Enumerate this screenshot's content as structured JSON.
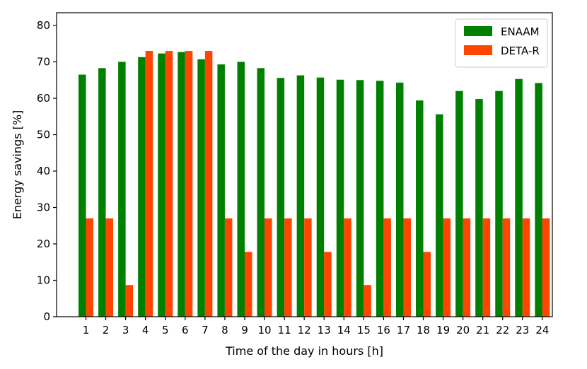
{
  "chart_data": {
    "type": "bar",
    "xlabel": "Time of the day in hours [h]",
    "ylabel": "Energy savings [%]",
    "ylim": [
      0,
      83.5
    ],
    "yticks": [
      0,
      10,
      20,
      30,
      40,
      50,
      60,
      70,
      80
    ],
    "categories": [
      "1",
      "2",
      "3",
      "4",
      "5",
      "6",
      "7",
      "8",
      "9",
      "10",
      "11",
      "12",
      "13",
      "14",
      "15",
      "16",
      "17",
      "18",
      "19",
      "20",
      "21",
      "22",
      "23",
      "24"
    ],
    "grid": false,
    "legend_position": "top-right",
    "series": [
      {
        "name": "ENAAM",
        "color": "#008000",
        "values": [
          66.5,
          68.3,
          70.0,
          71.3,
          72.3,
          72.7,
          70.7,
          69.3,
          70.0,
          68.3,
          65.6,
          66.3,
          65.7,
          65.1,
          65.0,
          64.8,
          64.3,
          59.4,
          55.6,
          62.0,
          59.8,
          62.0,
          65.3,
          64.2
        ]
      },
      {
        "name": "DETA-R",
        "color": "#ff4500",
        "values": [
          27.0,
          27.0,
          8.7,
          73.0,
          73.0,
          73.0,
          73.0,
          27.0,
          17.8,
          27.0,
          27.0,
          27.0,
          17.8,
          27.0,
          8.7,
          27.0,
          27.0,
          17.8,
          27.0,
          27.0,
          27.0,
          27.0,
          27.0,
          27.0
        ]
      }
    ]
  }
}
